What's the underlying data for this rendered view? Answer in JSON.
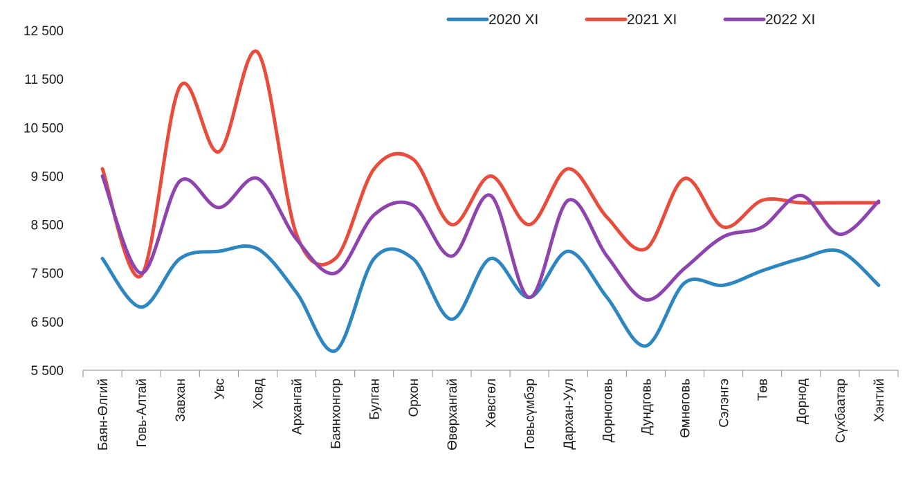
{
  "chart_data": {
    "type": "line",
    "smooth": true,
    "title": "",
    "xlabel": "",
    "ylabel": "",
    "ylim": [
      5500,
      12500
    ],
    "yticks": [
      5500,
      6500,
      7500,
      8500,
      9500,
      10500,
      11500,
      12500
    ],
    "ytick_labels": [
      "5 500",
      "6 500",
      "7 500",
      "8 500",
      "9 500",
      "10 500",
      "11 500",
      "12 500"
    ],
    "grid": false,
    "legend_position": "top-right",
    "categories": [
      "Баян-Өлгий",
      "Говь-Алтай",
      "Завхан",
      "Увс",
      "Ховд",
      "Архангай",
      "Баянхонгор",
      "Булган",
      "Орхон",
      "Өвөрхангай",
      "Хөвсгөл",
      "Говьсүмбэр",
      "Дархан-Уул",
      "Дорноговь",
      "Дундговь",
      "Өмнөговь",
      "Сэлэнгэ",
      "Төв",
      "Дорнод",
      "Сүхбаатар",
      "Хэнтий"
    ],
    "series": [
      {
        "name": "2020 XI",
        "color": "#2E86C1",
        "values": [
          7800,
          6800,
          7800,
          7950,
          8000,
          7100,
          5900,
          7800,
          7800,
          6550,
          7800,
          7000,
          7950,
          7000,
          6000,
          7300,
          7250,
          7550,
          7800,
          7950,
          7250
        ]
      },
      {
        "name": "2021 XI",
        "color": "#E74C3C",
        "values": [
          9650,
          7450,
          11350,
          10000,
          12050,
          8300,
          7800,
          9650,
          9850,
          8500,
          9500,
          8500,
          9650,
          8650,
          8000,
          9450,
          8450,
          9000,
          8950,
          8950,
          8950
        ]
      },
      {
        "name": "2022 XI",
        "color": "#8E44AD",
        "values": [
          9500,
          7500,
          9400,
          8850,
          9450,
          8200,
          7500,
          8700,
          8900,
          7850,
          9100,
          7000,
          9000,
          7850,
          6950,
          7600,
          8250,
          8450,
          9100,
          8300,
          8980
        ]
      }
    ]
  }
}
